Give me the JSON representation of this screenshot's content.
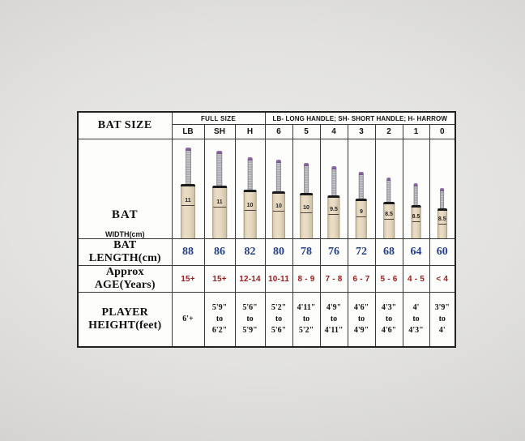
{
  "header": {
    "bat_size_label": "BAT SIZE",
    "full_size_label": "FULL SIZE",
    "handle_note": "LB- LONG HANDLE; SH- SHORT HANDLE; H- HARROW"
  },
  "row_labels": {
    "bat_main": "BAT",
    "bat_sub": "WIDTH(cm)",
    "bat_length": "BAT LENGTH(cm)",
    "age": "Approx AGE(Years)",
    "player_height_line1": "PLAYER",
    "player_height_line2": "HEIGHT(feet)"
  },
  "colors": {
    "length_text": "#24408e",
    "age_text": "#9c1c1c",
    "blade": "#e6d8c0",
    "handle_grip_cap": "#8a68a0"
  },
  "columns": [
    {
      "size": "LB",
      "width_cm": "11",
      "length_cm": "88",
      "age": "15+",
      "height_lines": [
        "6'+"
      ]
    },
    {
      "size": "SH",
      "width_cm": "11",
      "length_cm": "86",
      "age": "15+",
      "height_lines": [
        "5'9\"",
        "to",
        "6'2\""
      ]
    },
    {
      "size": "H",
      "width_cm": "10",
      "length_cm": "82",
      "age": "12-14",
      "height_lines": [
        "5'6\"",
        "to",
        "5'9\""
      ]
    },
    {
      "size": "6",
      "width_cm": "10",
      "length_cm": "80",
      "age": "10-11",
      "height_lines": [
        "5'2\"",
        "to",
        "5'6\""
      ]
    },
    {
      "size": "5",
      "width_cm": "10",
      "length_cm": "78",
      "age": "8 - 9",
      "height_lines": [
        "4'11\"",
        "to",
        "5'2\""
      ]
    },
    {
      "size": "4",
      "width_cm": "9.5",
      "length_cm": "76",
      "age": "7 - 8",
      "height_lines": [
        "4'9\"",
        "to",
        "4'11\""
      ]
    },
    {
      "size": "3",
      "width_cm": "9",
      "length_cm": "72",
      "age": "6 - 7",
      "height_lines": [
        "4'6\"",
        "to",
        "4'9\""
      ]
    },
    {
      "size": "2",
      "width_cm": "8.5",
      "length_cm": "68",
      "age": "5 - 6",
      "height_lines": [
        "4'3\"",
        "to",
        "4'6\""
      ]
    },
    {
      "size": "1",
      "width_cm": "8.5",
      "length_cm": "64",
      "age": "4 - 5",
      "height_lines": [
        "4'",
        "to",
        "4'3\""
      ]
    },
    {
      "size": "0",
      "width_cm": "8.5",
      "length_cm": "60",
      "age": "< 4",
      "height_lines": [
        "3'9\"",
        "to",
        "4'"
      ]
    }
  ],
  "chart_data": {
    "type": "table",
    "title": "BAT SIZE",
    "legend": "LB- LONG HANDLE; SH- SHORT HANDLE; H- HARROW",
    "full_size_group": [
      "LB",
      "SH",
      "H"
    ],
    "categories": [
      "LB",
      "SH",
      "H",
      "6",
      "5",
      "4",
      "3",
      "2",
      "1",
      "0"
    ],
    "series": [
      {
        "name": "BAT WIDTH(cm)",
        "values": [
          11,
          11,
          10,
          10,
          10,
          9.5,
          9,
          8.5,
          8.5,
          8.5
        ]
      },
      {
        "name": "BAT LENGTH(cm)",
        "values": [
          88,
          86,
          82,
          80,
          78,
          76,
          72,
          68,
          64,
          60
        ]
      },
      {
        "name": "Approx AGE(Years)",
        "values": [
          "15+",
          "15+",
          "12-14",
          "10-11",
          "8 - 9",
          "7 - 8",
          "6 - 7",
          "5 - 6",
          "4 - 5",
          "< 4"
        ]
      },
      {
        "name": "PLAYER HEIGHT(feet)",
        "values": [
          "6'+",
          "5'9\" to 6'2\"",
          "5'6\" to 5'9\"",
          "5'2\" to 5'6\"",
          "4'11\" to 5'2\"",
          "4'9\" to 4'11\"",
          "4'6\" to 4'9\"",
          "4'3\" to 4'6\"",
          "4' to 4'3\"",
          "3'9\" to 4'"
        ]
      }
    ]
  }
}
